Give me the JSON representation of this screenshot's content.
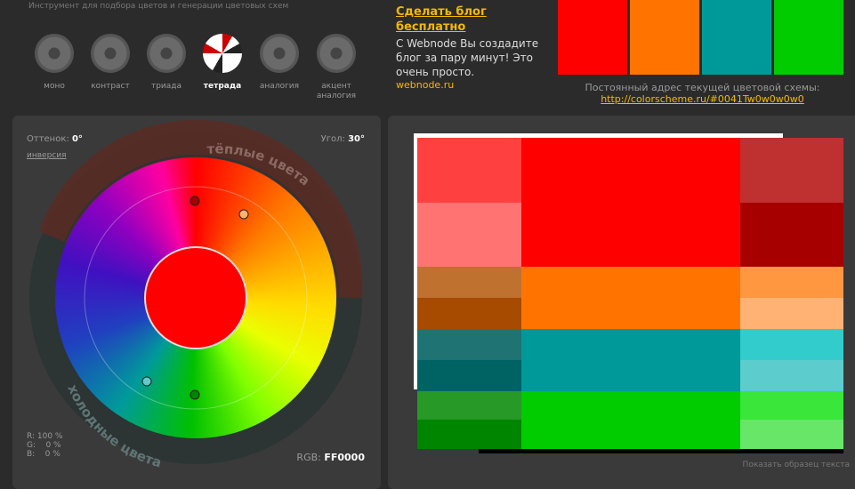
{
  "header": {
    "tagline": "Инструмент для подбора цветов и генерации цветовых схем"
  },
  "modes": [
    {
      "label": "моно"
    },
    {
      "label": "контраст"
    },
    {
      "label": "триада"
    },
    {
      "label": "тетрада"
    },
    {
      "label": "аналогия"
    },
    {
      "label": "акцент аналогия"
    }
  ],
  "ad": {
    "title": "Сделать блог бесплатно",
    "text": "С Webnode Вы создадите блог за пару минут! Это очень просто.",
    "link": "webnode.ru"
  },
  "scheme_link": {
    "label": "Постоянный адрес текущей цветовой схемы:",
    "url": "http://colorscheme.ru/#0041Tw0w0w0w0"
  },
  "wheel": {
    "hue_label": "Оттенок:",
    "hue": "0°",
    "invert": "инверсия",
    "angle_label": "Угол:",
    "angle": "30°",
    "warm": "тёплые цвета",
    "cold": "холодные цвета",
    "r": "R: 100 %",
    "g": "G:    0 %",
    "b": "B:    0 %",
    "rgb_label": "RGB:",
    "rgb": "FF0000"
  },
  "sample_text": "Показать образец текста"
}
